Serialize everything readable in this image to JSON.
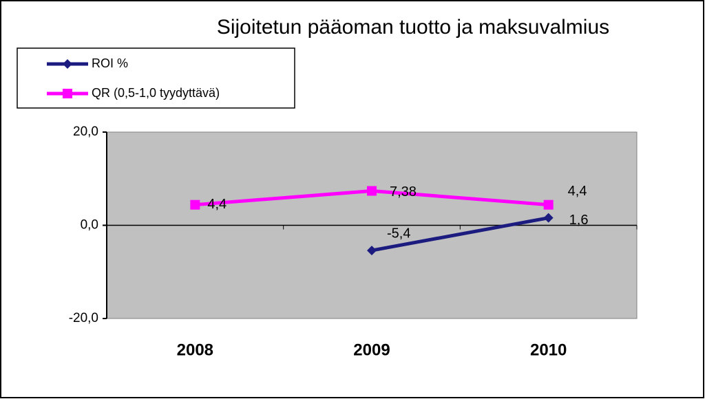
{
  "chart_data": {
    "type": "line",
    "title": "Sijoitetun pääoman tuotto ja maksuvalmius",
    "categories": [
      "2008",
      "2009",
      "2010"
    ],
    "series": [
      {
        "name": "ROI %",
        "color": "#1c1c80",
        "marker": "diamond",
        "values": [
          null,
          -5.4,
          1.6
        ],
        "value_labels": [
          null,
          "-5,4",
          "1,6"
        ]
      },
      {
        "name": "QR (0,5-1,0  tyydyttävä)",
        "color": "#ff00ff",
        "marker": "square",
        "values": [
          4.4,
          7.38,
          4.4
        ],
        "value_labels": [
          "4,4",
          "7,38",
          "4,4"
        ]
      }
    ],
    "ylim": [
      -20,
      20
    ],
    "yticks": [
      {
        "value": -20,
        "label": "-20,0"
      },
      {
        "value": 0,
        "label": "0,0"
      },
      {
        "value": 20,
        "label": "20,0"
      }
    ],
    "plot_background": "#c0c0c0",
    "legend": "top-left"
  }
}
